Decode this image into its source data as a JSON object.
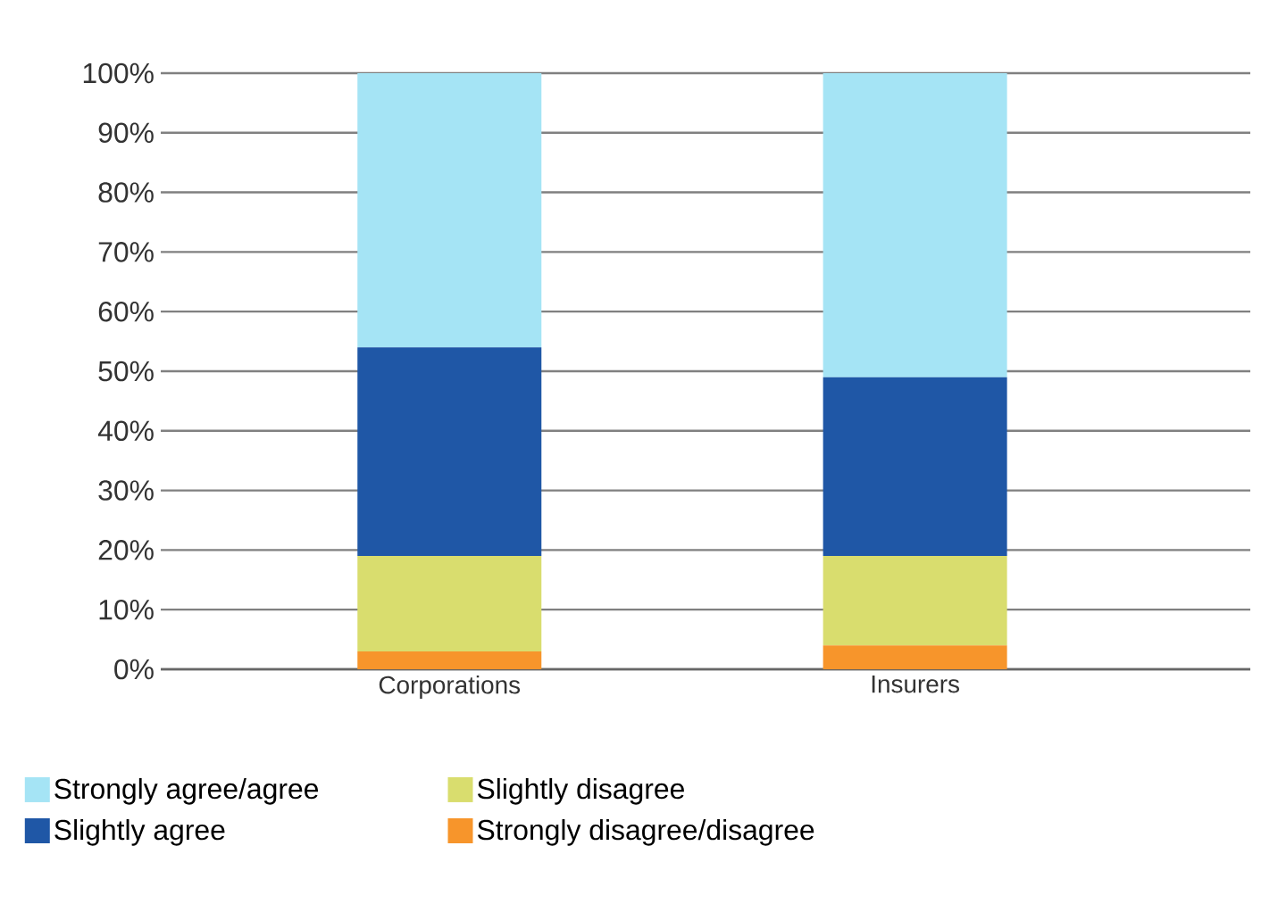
{
  "chart_data": {
    "type": "bar",
    "stacked": true,
    "categories": [
      "Corporations",
      "Insurers"
    ],
    "series": [
      {
        "name": "Strongly disagree/disagree",
        "color": "#f7952b",
        "values": [
          3,
          4
        ]
      },
      {
        "name": "Slightly disagree",
        "color": "#d9dd6e",
        "values": [
          16,
          15
        ]
      },
      {
        "name": "Slightly agree",
        "color": "#1f57a6",
        "values": [
          35,
          30
        ]
      },
      {
        "name": "Strongly agree/agree",
        "color": "#a5e4f5",
        "values": [
          46,
          51
        ]
      }
    ],
    "ylim": [
      0,
      100
    ],
    "yticks": [
      {
        "value": 0,
        "label": "0%"
      },
      {
        "value": 10,
        "label": "10%"
      },
      {
        "value": 20,
        "label": "20%"
      },
      {
        "value": 30,
        "label": "30%"
      },
      {
        "value": 40,
        "label": "40%"
      },
      {
        "value": 50,
        "label": "50%"
      },
      {
        "value": 60,
        "label": "60%"
      },
      {
        "value": 70,
        "label": "70%"
      },
      {
        "value": 80,
        "label": "80%"
      },
      {
        "value": 90,
        "label": "90%"
      },
      {
        "value": 100,
        "label": "100%"
      }
    ],
    "grid": "y",
    "legend": "bottom"
  }
}
